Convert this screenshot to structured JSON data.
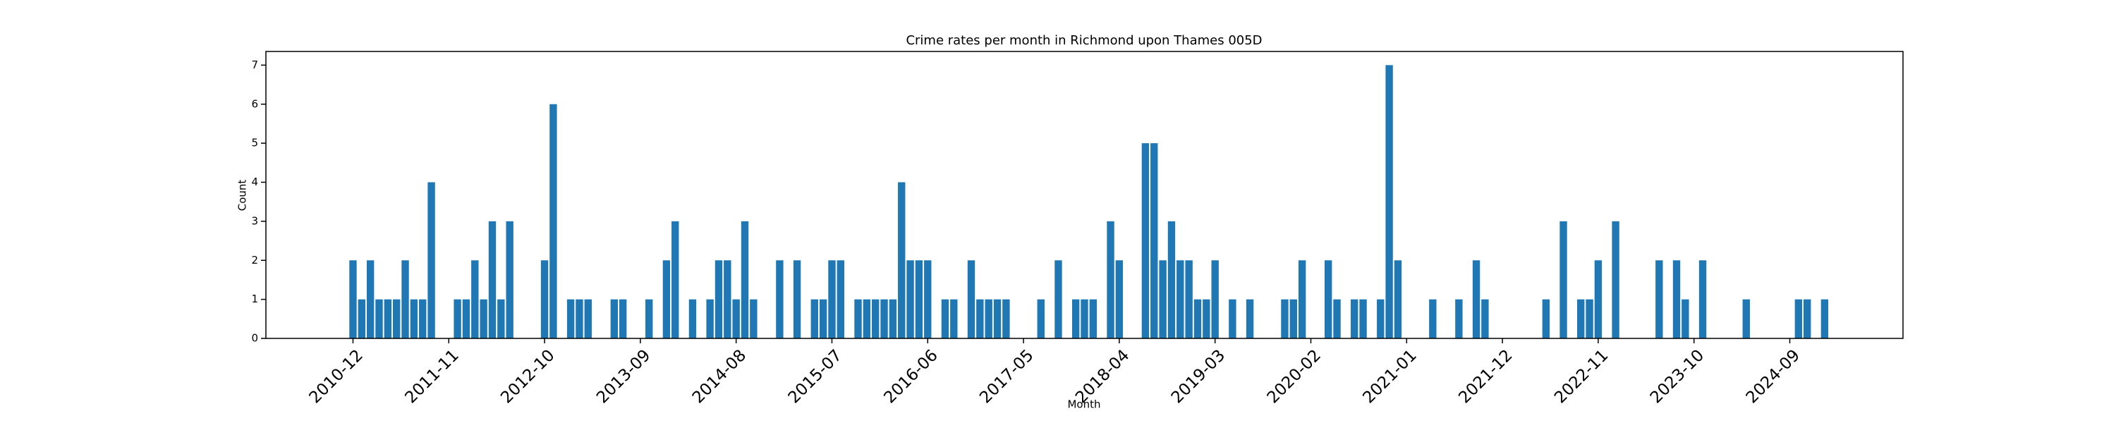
{
  "chart_data": {
    "type": "bar",
    "title": "Crime rates per month in Richmond upon Thames 005D",
    "x_label": "Month",
    "y_label": "Count",
    "color": "#1f77b4",
    "x": [
      "2010-12",
      "2011-01",
      "2011-02",
      "2011-03",
      "2011-04",
      "2011-05",
      "2011-06",
      "2011-07",
      "2011-08",
      "2011-09",
      "2011-12",
      "2012-01",
      "2012-02",
      "2012-03",
      "2012-04",
      "2012-05",
      "2012-06",
      "2012-10",
      "2012-11",
      "2013-01",
      "2013-02",
      "2013-03",
      "2013-06",
      "2013-07",
      "2013-10",
      "2013-12",
      "2014-01",
      "2014-03",
      "2014-05",
      "2014-06",
      "2014-07",
      "2014-08",
      "2014-09",
      "2014-10",
      "2015-01",
      "2015-03",
      "2015-05",
      "2015-06",
      "2015-07",
      "2015-08",
      "2015-10",
      "2015-11",
      "2015-12",
      "2016-01",
      "2016-02",
      "2016-03",
      "2016-04",
      "2016-05",
      "2016-06",
      "2016-08",
      "2016-09",
      "2016-11",
      "2016-12",
      "2017-01",
      "2017-02",
      "2017-03",
      "2017-07",
      "2017-09",
      "2017-11",
      "2017-12",
      "2018-01",
      "2018-03",
      "2018-04",
      "2018-07",
      "2018-08",
      "2018-09",
      "2018-10",
      "2018-11",
      "2018-12",
      "2019-01",
      "2019-02",
      "2019-03",
      "2019-05",
      "2019-07",
      "2019-11",
      "2019-12",
      "2020-01",
      "2020-04",
      "2020-05",
      "2020-07",
      "2020-08",
      "2020-10",
      "2020-11",
      "2020-12",
      "2021-04",
      "2021-07",
      "2021-09",
      "2021-10",
      "2022-05",
      "2022-07",
      "2022-09",
      "2022-10",
      "2022-11",
      "2023-01",
      "2023-06",
      "2023-08",
      "2023-09",
      "2023-11",
      "2024-04",
      "2024-10",
      "2024-11",
      "2025-01"
    ],
    "values": [
      2,
      1,
      2,
      1,
      1,
      1,
      2,
      1,
      1,
      4,
      1,
      1,
      2,
      1,
      3,
      1,
      3,
      2,
      6,
      1,
      1,
      1,
      1,
      1,
      1,
      2,
      3,
      1,
      1,
      2,
      2,
      1,
      3,
      1,
      2,
      2,
      1,
      1,
      2,
      2,
      1,
      1,
      1,
      1,
      1,
      4,
      2,
      2,
      2,
      1,
      1,
      2,
      1,
      1,
      1,
      1,
      1,
      2,
      1,
      1,
      1,
      3,
      2,
      5,
      5,
      2,
      3,
      2,
      2,
      1,
      1,
      2,
      1,
      1,
      1,
      1,
      2,
      2,
      1,
      1,
      1,
      1,
      7,
      2,
      1,
      1,
      2,
      1,
      1,
      3,
      1,
      1,
      2,
      3,
      2,
      2,
      1,
      2,
      1,
      1,
      1,
      1
    ],
    "xlim": [
      "2010-02",
      "2025-10"
    ],
    "xticks": [
      "2010-12",
      "2011-11",
      "2012-10",
      "2013-09",
      "2014-08",
      "2015-07",
      "2016-06",
      "2017-05",
      "2018-04",
      "2019-03",
      "2020-02",
      "2021-01",
      "2021-12",
      "2022-11",
      "2023-10",
      "2024-09"
    ],
    "ylim": [
      0,
      7.35
    ],
    "yticks": [
      0,
      1,
      2,
      3,
      4,
      5,
      6,
      7
    ]
  }
}
